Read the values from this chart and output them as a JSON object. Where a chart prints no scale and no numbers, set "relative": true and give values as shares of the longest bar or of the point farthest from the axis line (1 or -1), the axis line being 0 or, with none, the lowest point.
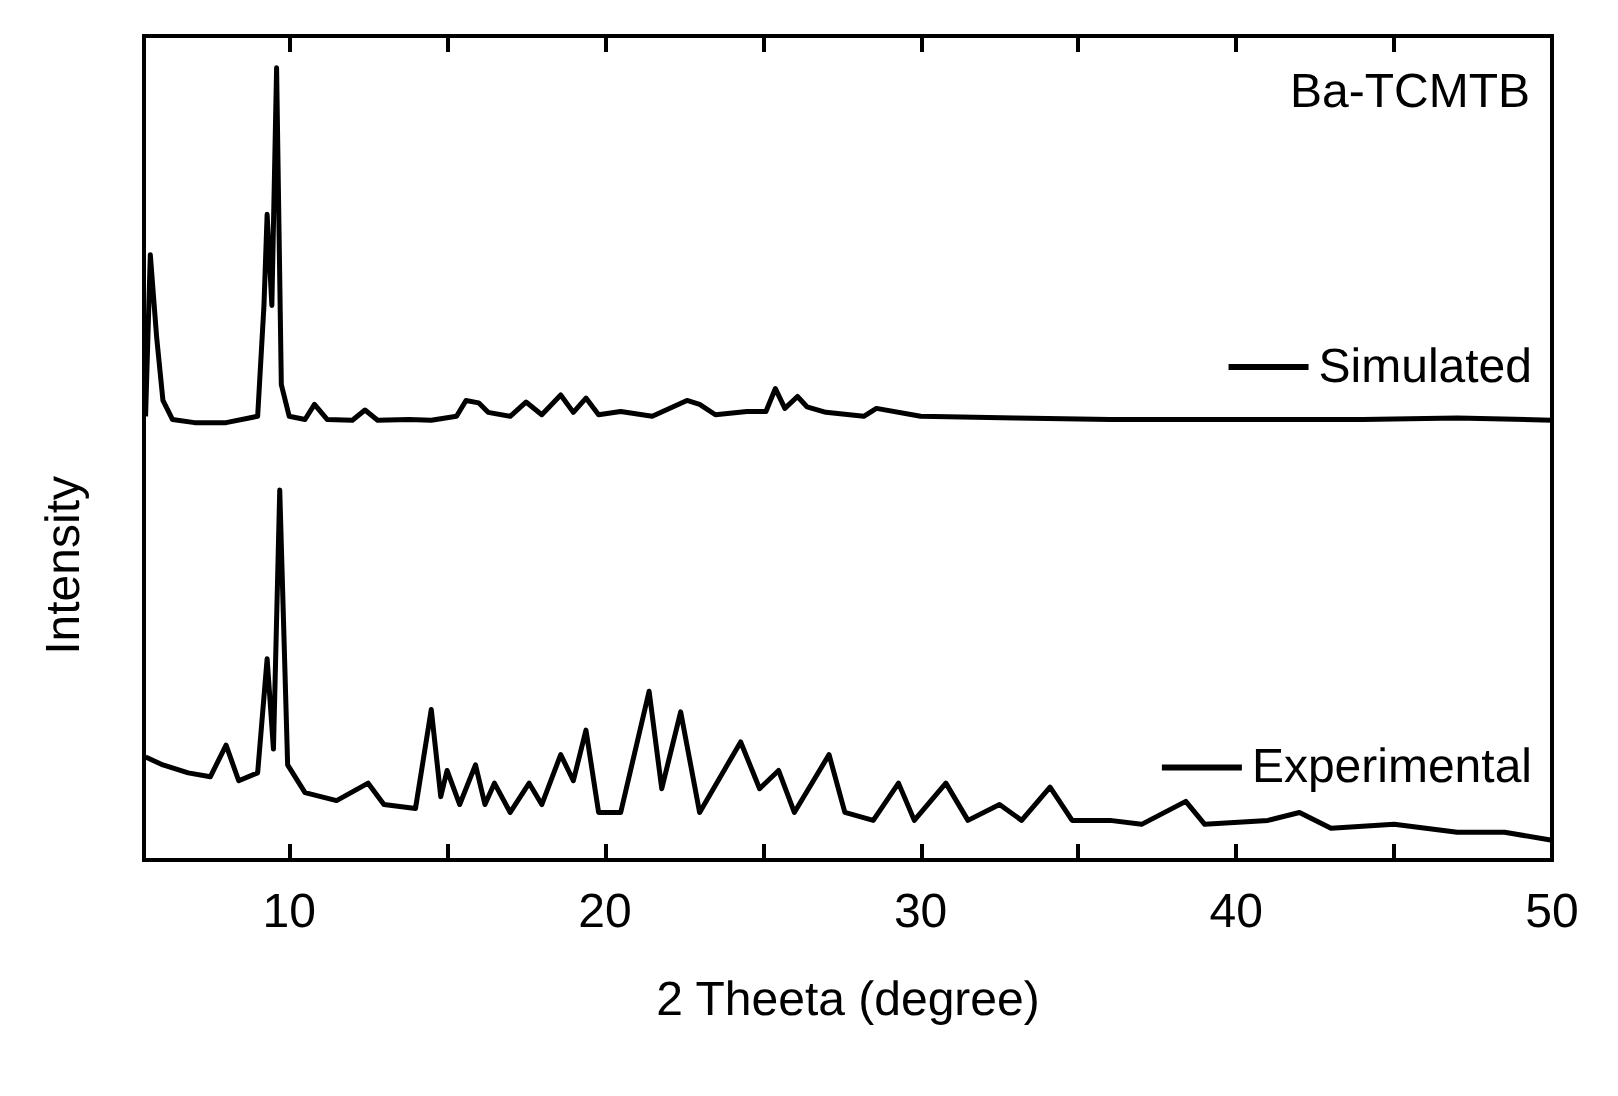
{
  "chart_data": {
    "type": "line",
    "relative": true,
    "xlabel": "2 Theeta (degree)",
    "ylabel": "Intensity",
    "annotations": [
      "Ba-TCMTB"
    ],
    "xlim": [
      5.4,
      50
    ],
    "xticks": [
      10,
      {
        "value": 15,
        "label": null
      },
      20,
      {
        "value": 25,
        "label": null
      },
      30,
      {
        "value": 35,
        "label": null
      },
      40,
      {
        "value": 45,
        "label": null
      },
      50
    ],
    "legend": "right",
    "grid": false,
    "marker": "none",
    "line_style": "solid",
    "series": [
      {
        "name": "Simulated",
        "color": "#000000",
        "x": [
          5.45,
          5.6,
          5.8,
          6.0,
          6.3,
          7,
          8,
          9.0,
          9.2,
          9.3,
          9.45,
          9.6,
          9.75,
          10.0,
          10.5,
          10.8,
          11.2,
          12,
          12.4,
          12.8,
          13.8,
          14.5,
          15.3,
          15.6,
          16,
          16.3,
          17,
          17.5,
          18,
          18.6,
          19,
          19.4,
          19.8,
          20.5,
          21.5,
          22.6,
          23,
          23.5,
          24.5,
          25.1,
          25.4,
          25.7,
          26.1,
          26.4,
          27,
          28.2,
          28.6,
          30,
          33,
          36,
          40,
          44,
          47,
          50
        ],
        "values": [
          0.56,
          0.764,
          0.66,
          0.58,
          0.556,
          0.552,
          0.552,
          0.56,
          0.7,
          0.815,
          0.7,
          1.0,
          0.6,
          0.56,
          0.556,
          0.575,
          0.556,
          0.555,
          0.568,
          0.555,
          0.556,
          0.555,
          0.56,
          0.58,
          0.577,
          0.565,
          0.56,
          0.578,
          0.562,
          0.587,
          0.565,
          0.583,
          0.562,
          0.566,
          0.56,
          0.58,
          0.575,
          0.562,
          0.566,
          0.566,
          0.595,
          0.57,
          0.585,
          0.572,
          0.565,
          0.56,
          0.57,
          0.56,
          0.558,
          0.556,
          0.556,
          0.556,
          0.558,
          0.555
        ]
      },
      {
        "name": "Experimental",
        "color": "#000000",
        "x": [
          5.45,
          6,
          6.8,
          7.5,
          8.0,
          8.4,
          9.0,
          9.3,
          9.5,
          9.7,
          9.95,
          10.5,
          11.5,
          12.5,
          13,
          14,
          14.5,
          14.8,
          15.0,
          15.4,
          15.9,
          16.2,
          16.5,
          17,
          17.6,
          18,
          18.6,
          19,
          19.4,
          19.8,
          20.5,
          21.4,
          21.8,
          22.4,
          23,
          24.3,
          24.9,
          25.5,
          26,
          27.1,
          27.6,
          28.5,
          29.3,
          29.8,
          30.8,
          31.5,
          32.5,
          33.2,
          34.1,
          34.8,
          36,
          37,
          38.4,
          39,
          41,
          42,
          43,
          45,
          47,
          48.5,
          50
        ],
        "values": [
          0.13,
          0.12,
          0.11,
          0.105,
          0.145,
          0.1,
          0.11,
          0.254,
          0.14,
          0.467,
          0.12,
          0.085,
          0.075,
          0.097,
          0.07,
          0.065,
          0.19,
          0.08,
          0.113,
          0.07,
          0.12,
          0.07,
          0.097,
          0.06,
          0.097,
          0.07,
          0.133,
          0.1,
          0.164,
          0.06,
          0.06,
          0.213,
          0.09,
          0.187,
          0.06,
          0.149,
          0.09,
          0.113,
          0.06,
          0.133,
          0.06,
          0.05,
          0.097,
          0.05,
          0.097,
          0.05,
          0.07,
          0.05,
          0.092,
          0.05,
          0.05,
          0.045,
          0.074,
          0.045,
          0.05,
          0.06,
          0.04,
          0.045,
          0.035,
          0.035,
          0.025
        ]
      }
    ]
  }
}
